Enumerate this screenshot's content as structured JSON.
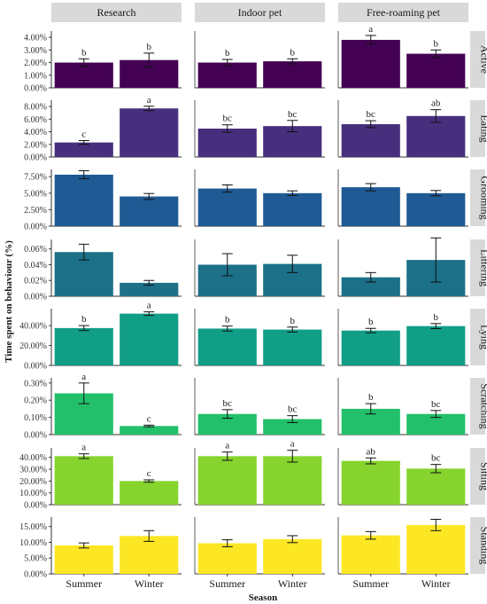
{
  "chart_data": {
    "type": "bar",
    "title": "",
    "xlabel": "Season",
    "ylabel": "Time spent on behaviour (%)",
    "categories": [
      "Summer",
      "Winter"
    ],
    "columns": [
      "Research",
      "Indoor pet",
      "Free-roaming pet"
    ],
    "grid": false,
    "legend": "none",
    "error_bars": true,
    "rows": [
      {
        "name": "Active",
        "color": "#440154",
        "ylim": [
          0,
          4.5
        ],
        "ticks": [
          0,
          1,
          2,
          3,
          4
        ],
        "tick_labels": [
          "0.00%",
          "1.00%",
          "2.00%",
          "3.00%",
          "4.00%"
        ],
        "panels": [
          {
            "values": [
              2.0,
              2.2
            ],
            "errors": [
              0.3,
              0.55
            ],
            "letters": [
              "b",
              "b"
            ]
          },
          {
            "values": [
              2.0,
              2.1
            ],
            "errors": [
              0.25,
              0.2
            ],
            "letters": [
              "b",
              "b"
            ]
          },
          {
            "values": [
              3.8,
              2.7
            ],
            "errors": [
              0.35,
              0.3
            ],
            "letters": [
              "a",
              "b"
            ]
          }
        ]
      },
      {
        "name": "Eating",
        "color": "#472f7d",
        "ylim": [
          0,
          9.0
        ],
        "ticks": [
          0,
          2,
          4,
          6,
          8
        ],
        "tick_labels": [
          "0.00%",
          "2.00%",
          "4.00%",
          "6.00%",
          "8.00%"
        ],
        "panels": [
          {
            "values": [
              2.3,
              7.7
            ],
            "errors": [
              0.3,
              0.35
            ],
            "letters": [
              "c",
              "a"
            ]
          },
          {
            "values": [
              4.5,
              4.9
            ],
            "errors": [
              0.6,
              0.9
            ],
            "letters": [
              "bc",
              "bc"
            ]
          },
          {
            "values": [
              5.2,
              6.5
            ],
            "errors": [
              0.55,
              1.0
            ],
            "letters": [
              "bc",
              "ab"
            ]
          }
        ]
      },
      {
        "name": "Grooming",
        "color": "#1f5a94",
        "ylim": [
          0,
          8.6
        ],
        "ticks": [
          0,
          2.5,
          5,
          7.5
        ],
        "tick_labels": [
          "0.00%",
          "2.50%",
          "5.00%",
          "7.50%"
        ],
        "panels": [
          {
            "values": [
              7.8,
              4.5
            ],
            "errors": [
              0.6,
              0.45
            ],
            "letters": [
              "",
              ""
            ]
          },
          {
            "values": [
              5.7,
              5.0
            ],
            "errors": [
              0.55,
              0.35
            ],
            "letters": [
              "",
              ""
            ]
          },
          {
            "values": [
              5.9,
              5.0
            ],
            "errors": [
              0.55,
              0.4
            ],
            "letters": [
              "",
              ""
            ]
          }
        ]
      },
      {
        "name": "Littering",
        "color": "#1c7088",
        "ylim": [
          0,
          0.072
        ],
        "ticks": [
          0,
          0.02,
          0.04,
          0.06
        ],
        "tick_labels": [
          "0.00%",
          "0.02%",
          "0.04%",
          "0.06%"
        ],
        "panels": [
          {
            "values": [
              0.056,
              0.017
            ],
            "errors": [
              0.01,
              0.003
            ],
            "letters": [
              "",
              ""
            ]
          },
          {
            "values": [
              0.04,
              0.041
            ],
            "errors": [
              0.014,
              0.011
            ],
            "letters": [
              "",
              ""
            ]
          },
          {
            "values": [
              0.024,
              0.046
            ],
            "errors": [
              0.006,
              0.028
            ],
            "letters": [
              "",
              ""
            ]
          }
        ]
      },
      {
        "name": "Lying",
        "color": "#119e87",
        "ylim": [
          0,
          57
        ],
        "ticks": [
          0,
          20,
          40
        ],
        "tick_labels": [
          "0.00%",
          "20.00%",
          "40.00%"
        ],
        "panels": [
          {
            "values": [
              37.5,
              52.0
            ],
            "errors": [
              2.5,
              1.8
            ],
            "letters": [
              "b",
              "a"
            ]
          },
          {
            "values": [
              37.0,
              36.0
            ],
            "errors": [
              2.5,
              2.5
            ],
            "letters": [
              "b",
              "b"
            ]
          },
          {
            "values": [
              35.0,
              39.5
            ],
            "errors": [
              2.2,
              2.5
            ],
            "letters": [
              "b",
              "b"
            ]
          }
        ]
      },
      {
        "name": "Scratching",
        "color": "#22c06a",
        "ylim": [
          0,
          0.33
        ],
        "ticks": [
          0,
          0.1,
          0.2,
          0.3
        ],
        "tick_labels": [
          "0.00%",
          "0.10%",
          "0.20%",
          "0.30%"
        ],
        "panels": [
          {
            "values": [
              0.24,
              0.05
            ],
            "errors": [
              0.06,
              0.005
            ],
            "letters": [
              "a",
              "c"
            ]
          },
          {
            "values": [
              0.12,
              0.09
            ],
            "errors": [
              0.025,
              0.02
            ],
            "letters": [
              "bc",
              "bc"
            ]
          },
          {
            "values": [
              0.15,
              0.12
            ],
            "errors": [
              0.03,
              0.02
            ],
            "letters": [
              "b",
              "bc"
            ]
          }
        ]
      },
      {
        "name": "Sitting",
        "color": "#86d42d",
        "ylim": [
          0,
          48
        ],
        "ticks": [
          0,
          10,
          20,
          30,
          40
        ],
        "tick_labels": [
          "0.00%",
          "10.00%",
          "20.00%",
          "30.00%",
          "40.00%"
        ],
        "panels": [
          {
            "values": [
              41.0,
              20.0
            ],
            "errors": [
              2.0,
              1.0
            ],
            "letters": [
              "a",
              "c"
            ]
          },
          {
            "values": [
              41.0,
              41.0
            ],
            "errors": [
              3.5,
              5.0
            ],
            "letters": [
              "a",
              "a"
            ]
          },
          {
            "values": [
              37.0,
              30.5
            ],
            "errors": [
              2.5,
              3.5
            ],
            "letters": [
              "ab",
              "bc"
            ]
          }
        ]
      },
      {
        "name": "Standing",
        "color": "#fde725",
        "ylim": [
          0,
          18
        ],
        "ticks": [
          0,
          5,
          10,
          15
        ],
        "tick_labels": [
          "0.00%",
          "5.00%",
          "10.00%",
          "15.00%"
        ],
        "panels": [
          {
            "values": [
              9.0,
              12.0
            ],
            "errors": [
              0.8,
              1.7
            ],
            "letters": [
              "",
              ""
            ]
          },
          {
            "values": [
              9.7,
              11.0
            ],
            "errors": [
              1.1,
              1.1
            ],
            "letters": [
              "",
              ""
            ]
          },
          {
            "values": [
              12.2,
              15.5
            ],
            "errors": [
              1.2,
              1.8
            ],
            "letters": [
              "",
              ""
            ]
          }
        ]
      }
    ]
  }
}
